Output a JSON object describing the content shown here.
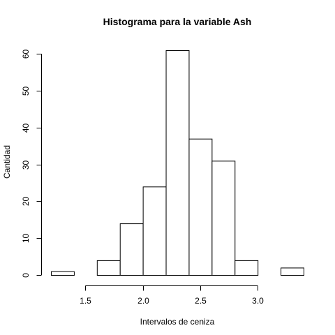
{
  "chart_data": {
    "type": "bar",
    "title": "Histograma para la variable Ash",
    "xlabel": "Intervalos de ceniza",
    "ylabel": "Cantidad",
    "bins": [
      {
        "from": 1.2,
        "to": 1.4,
        "count": 1
      },
      {
        "from": 1.4,
        "to": 1.6,
        "count": 0
      },
      {
        "from": 1.6,
        "to": 1.8,
        "count": 4
      },
      {
        "from": 1.8,
        "to": 2.0,
        "count": 14
      },
      {
        "from": 2.0,
        "to": 2.2,
        "count": 24
      },
      {
        "from": 2.2,
        "to": 2.4,
        "count": 61
      },
      {
        "from": 2.4,
        "to": 2.6,
        "count": 37
      },
      {
        "from": 2.6,
        "to": 2.8,
        "count": 31
      },
      {
        "from": 2.8,
        "to": 3.0,
        "count": 4
      },
      {
        "from": 3.0,
        "to": 3.2,
        "count": 0
      },
      {
        "from": 3.2,
        "to": 3.4,
        "count": 2
      }
    ],
    "xticks": [
      "1.5",
      "2.0",
      "2.5",
      "3.0"
    ],
    "yticks": [
      "0",
      "10",
      "20",
      "30",
      "40",
      "50",
      "60"
    ],
    "xlim": [
      1.2,
      3.4
    ],
    "ylim": [
      0,
      61
    ],
    "grid": false,
    "legend": "none"
  }
}
